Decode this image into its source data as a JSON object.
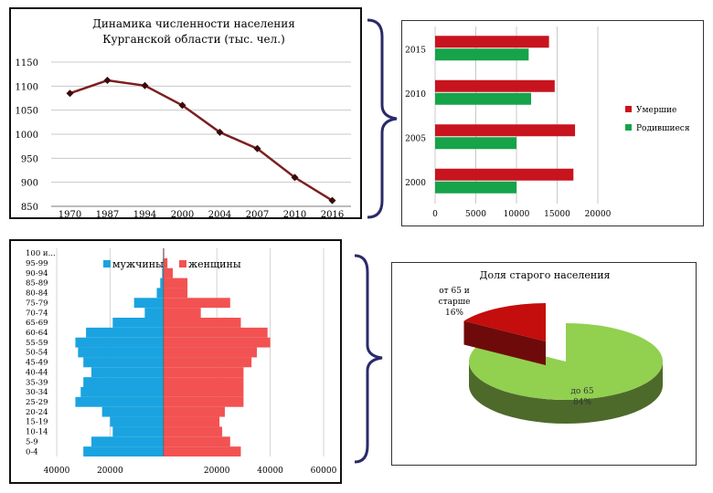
{
  "colors": {
    "line": "#7b1f1f",
    "deaths": "#c8141e",
    "births": "#16a34a",
    "men": "#1aa3e0",
    "women": "#f25252",
    "pie_old": "#c40d0d",
    "pie_old_side": "#6f0a0a",
    "pie_young": "#92d050",
    "pie_young_side": "#4d6a2a"
  },
  "chart_data": [
    {
      "type": "line",
      "title": "Динамика численности населения Курганской области (тыс. чел.)",
      "title_lines": [
        "Динамика численности населения",
        "Курганской области (тыс. чел.)"
      ],
      "categories": [
        "1970",
        "1987",
        "1994",
        "2000",
        "2004",
        "2007",
        "2010",
        "2016"
      ],
      "values": [
        1085,
        1112,
        1101,
        1060,
        1004,
        970,
        910,
        862
      ],
      "yticks": [
        "1150",
        "1100",
        "1050",
        "1000",
        "950",
        "900",
        "850"
      ],
      "ylim": [
        850,
        1150
      ],
      "grid": true
    },
    {
      "type": "bar",
      "orientation": "horizontal",
      "categories": [
        "2015",
        "2010",
        "2005",
        "2000"
      ],
      "series": [
        {
          "name": "Умершие",
          "values": [
            14000,
            14700,
            17200,
            17000
          ]
        },
        {
          "name": "Родившиеся",
          "values": [
            11500,
            11800,
            10000,
            10000
          ]
        }
      ],
      "xticks": [
        "0",
        "5000",
        "10000",
        "15000",
        "20000"
      ],
      "xlim": [
        0,
        20000
      ],
      "legend": "right",
      "grid": true
    },
    {
      "type": "bar",
      "orientation": "population-pyramid",
      "age_groups": [
        "0-4",
        "5-9",
        "10-14",
        "15-19",
        "20-24",
        "25-29",
        "30-34",
        "35-39",
        "40-44",
        "45-49",
        "50-54",
        "55-59",
        "60-64",
        "65-69",
        "70-74",
        "75-79",
        "80-84",
        "85-89",
        "90-94",
        "95-99",
        "100 и..."
      ],
      "series": [
        {
          "name": "мужчины",
          "values": [
            30000,
            27000,
            19000,
            20000,
            23000,
            33000,
            31000,
            30000,
            27000,
            30000,
            32000,
            33000,
            29000,
            19000,
            7000,
            11000,
            2500,
            1200,
            500,
            200,
            100
          ]
        },
        {
          "name": "женщины",
          "values": [
            29000,
            25000,
            22000,
            21000,
            23000,
            30000,
            30000,
            30000,
            30000,
            33000,
            35000,
            40000,
            39000,
            29000,
            14000,
            25000,
            9000,
            9000,
            3500,
            1500,
            300
          ]
        }
      ],
      "xticks": [
        "40000",
        "20000",
        "20000",
        "40000",
        "60000"
      ],
      "xlim": [
        -40000,
        60000
      ],
      "legend": "top"
    },
    {
      "type": "pie",
      "title": "Доля старого населения",
      "slices": [
        {
          "label": "от 65 и старше",
          "value": 16,
          "text": "16%"
        },
        {
          "label": "до 65",
          "value": 84,
          "text": "84%"
        }
      ]
    }
  ],
  "pie_labels": {
    "old_lines": [
      "от 65 и",
      "старше",
      "16%"
    ],
    "young_lines": [
      "до 65",
      "84%"
    ]
  }
}
